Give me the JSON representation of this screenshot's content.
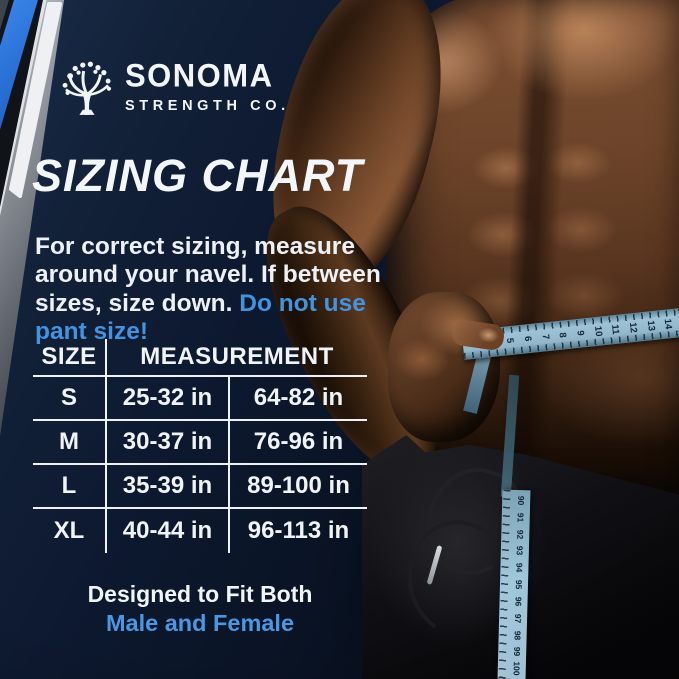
{
  "brand": {
    "name": "SONOMA",
    "subtitle": "STRENGTH CO."
  },
  "title": "SIZING CHART",
  "intro": {
    "line1": "For correct sizing, measure",
    "line2": "around your navel. If between",
    "line3_white": "sizes, size down.",
    "line3_blue": "Do not use",
    "line4_blue": "pant size!"
  },
  "table": {
    "col_headers": [
      "SIZE",
      "MEASUREMENT"
    ],
    "rows": [
      {
        "size": "S",
        "range_in": "25-32 in",
        "range_alt": "64-82 in"
      },
      {
        "size": "M",
        "range_in": "30-37 in",
        "range_alt": "76-96 in"
      },
      {
        "size": "L",
        "range_in": "35-39 in",
        "range_alt": "89-100 in"
      },
      {
        "size": "XL",
        "range_in": "40-44 in",
        "range_alt": "96-113 in"
      }
    ]
  },
  "footer": {
    "line1": "Designed to Fit Both",
    "line2": "Male and Female"
  },
  "photo": {
    "description": "shirtless muscular man measuring his waist with a blue tape measure",
    "horizontal_tape_numbers": [
      "3",
      "4",
      "5",
      "6",
      "7",
      "8",
      "9",
      "10",
      "11",
      "12",
      "13",
      "14"
    ],
    "vertical_tape_numbers": [
      "90",
      "91",
      "92",
      "93",
      "94",
      "95",
      "96",
      "97",
      "98",
      "99",
      "100"
    ]
  },
  "colors": {
    "accent_blue": "#4493df",
    "background_navy": "#0c1626",
    "stripe_blue": "#2e78e2",
    "tape_blue": "#9cc3d7",
    "text_white": "#f3f6f9"
  }
}
